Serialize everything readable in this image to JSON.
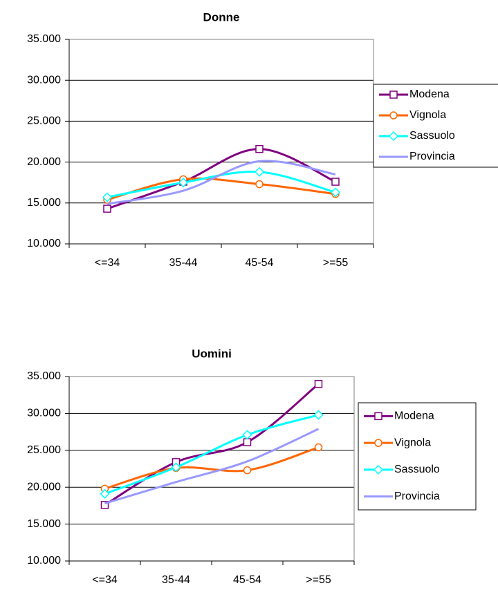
{
  "chart_data": [
    {
      "type": "line",
      "title": "Donne",
      "categories": [
        "<=34",
        "35-44",
        "45-54",
        ">=55"
      ],
      "ylim": [
        10000,
        35000
      ],
      "yticks": [
        {
          "value": 10000,
          "label": "10.000"
        },
        {
          "value": 15000,
          "label": "15.000"
        },
        {
          "value": 20000,
          "label": "20.000"
        },
        {
          "value": 25000,
          "label": "25.000"
        },
        {
          "value": 30000,
          "label": "30.000"
        },
        {
          "value": 35000,
          "label": "35.000"
        }
      ],
      "grid": true,
      "legend": "right",
      "series": [
        {
          "name": "Modena",
          "color": "#800080",
          "marker": "square",
          "values": [
            14300,
            17600,
            21600,
            17600
          ]
        },
        {
          "name": "Vignola",
          "color": "#ff6600",
          "marker": "circle",
          "values": [
            15400,
            17900,
            17300,
            16100
          ]
        },
        {
          "name": "Sassuolo",
          "color": "#00ffff",
          "marker": "diamond",
          "values": [
            15700,
            17500,
            18800,
            16300
          ]
        },
        {
          "name": "Provincia",
          "color": "#9999ff",
          "marker": "none",
          "values": [
            14900,
            16500,
            20100,
            18500
          ]
        }
      ]
    },
    {
      "type": "line",
      "title": "Uomini",
      "categories": [
        "<=34",
        "35-44",
        "45-54",
        ">=55"
      ],
      "ylim": [
        10000,
        35000
      ],
      "yticks": [
        {
          "value": 10000,
          "label": "10.000"
        },
        {
          "value": 15000,
          "label": "15.000"
        },
        {
          "value": 20000,
          "label": "20.000"
        },
        {
          "value": 25000,
          "label": "25.000"
        },
        {
          "value": 30000,
          "label": "30.000"
        },
        {
          "value": 35000,
          "label": "35.000"
        }
      ],
      "grid": true,
      "legend": "right",
      "series": [
        {
          "name": "Modena",
          "color": "#800080",
          "marker": "square",
          "values": [
            17600,
            23400,
            26100,
            34000
          ]
        },
        {
          "name": "Vignola",
          "color": "#ff6600",
          "marker": "circle",
          "values": [
            19800,
            22600,
            22300,
            25400
          ]
        },
        {
          "name": "Sassuolo",
          "color": "#00ffff",
          "marker": "diamond",
          "values": [
            19100,
            22700,
            27100,
            29800
          ]
        },
        {
          "name": "Provincia",
          "color": "#9999ff",
          "marker": "none",
          "values": [
            17800,
            20700,
            23500,
            27900
          ]
        }
      ]
    }
  ]
}
